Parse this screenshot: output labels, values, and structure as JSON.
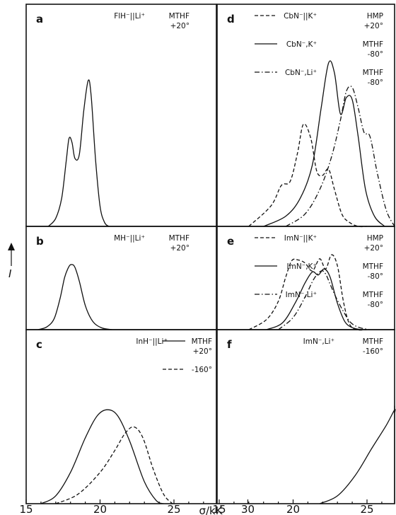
{
  "figure": {
    "y_axis_label": "I",
    "x_axis_label": "σ/kK",
    "x_tick_labels_left": [
      "15",
      "20",
      "25",
      "30"
    ],
    "x_tick_labels_right": [
      "15",
      "20",
      "25",
      "30"
    ]
  },
  "chart_data": [
    {
      "type": "line",
      "panel": "a",
      "x_range": [
        15,
        32
      ],
      "ylim": [
        0,
        1
      ],
      "legend": [
        {
          "label": "FlH⁻||Li⁺",
          "solvent": "MTHF",
          "temperature": "+20°"
        }
      ],
      "series": [
        {
          "style": "solid",
          "x": [
            16.5,
            17.0,
            17.4,
            17.7,
            17.9,
            18.1,
            18.3,
            18.6,
            18.9,
            19.2,
            19.4,
            19.7,
            20.0,
            20.3,
            20.6
          ],
          "y": [
            0.0,
            0.04,
            0.14,
            0.32,
            0.44,
            0.42,
            0.34,
            0.36,
            0.58,
            0.73,
            0.65,
            0.33,
            0.1,
            0.02,
            0.0
          ]
        }
      ]
    },
    {
      "type": "line",
      "panel": "b",
      "x_range": [
        15,
        32
      ],
      "ylim": [
        0,
        1
      ],
      "legend": [
        {
          "label": "MH⁻||Li⁺",
          "solvent": "MTHF",
          "temperature": "+20°"
        }
      ],
      "series": [
        {
          "style": "solid",
          "x": [
            15.8,
            16.4,
            16.9,
            17.3,
            17.6,
            17.9,
            18.1,
            18.3,
            18.6,
            19.0,
            19.5,
            20.1,
            20.8
          ],
          "y": [
            0.0,
            0.03,
            0.12,
            0.34,
            0.56,
            0.68,
            0.7,
            0.67,
            0.52,
            0.26,
            0.09,
            0.02,
            0.0
          ]
        }
      ]
    },
    {
      "type": "line",
      "panel": "c",
      "x_range": [
        15,
        32
      ],
      "ylim": [
        0,
        1
      ],
      "legend": [
        {
          "label": "InH⁻||Li⁺",
          "solvent": "MTHF",
          "temperature": "+20°",
          "style": "solid"
        },
        {
          "label": "",
          "solvent": "",
          "temperature": "-160°",
          "style": "dashed"
        }
      ],
      "series": [
        {
          "name": "+20°",
          "style": "solid",
          "x": [
            16.0,
            17.0,
            18.0,
            19.0,
            19.8,
            20.5,
            21.2,
            22.0,
            23.0,
            23.8,
            24.3
          ],
          "y": [
            0.0,
            0.05,
            0.2,
            0.42,
            0.56,
            0.6,
            0.56,
            0.4,
            0.14,
            0.02,
            0.0
          ]
        },
        {
          "name": "-160°",
          "style": "dashed",
          "x": [
            17.0,
            18.5,
            20.0,
            21.0,
            21.7,
            22.3,
            22.9,
            23.6,
            24.3,
            24.9
          ],
          "y": [
            0.0,
            0.06,
            0.2,
            0.34,
            0.45,
            0.49,
            0.42,
            0.22,
            0.06,
            0.0
          ]
        }
      ]
    },
    {
      "type": "line",
      "panel": "d",
      "x_range": [
        15,
        32
      ],
      "ylim": [
        0,
        1
      ],
      "legend": [
        {
          "label": "CbN⁻||K⁺",
          "solvent": "HMP",
          "temperature": "+20°",
          "style": "dashed"
        },
        {
          "label": "CbN⁻,K⁺",
          "solvent": "MTHF",
          "temperature": "-80°",
          "style": "solid"
        },
        {
          "label": "CbN⁻,Li⁺",
          "solvent": "MTHF",
          "temperature": "-80°",
          "style": "dash-dot"
        }
      ],
      "series": [
        {
          "name": "CbN⁻||K⁺",
          "style": "dashed",
          "x": [
            17.0,
            18.5,
            19.2,
            19.8,
            20.3,
            20.7,
            21.2,
            21.6,
            22.0,
            22.4,
            22.8,
            23.3,
            23.8,
            24.4,
            25.0
          ],
          "y": [
            0.0,
            0.1,
            0.2,
            0.22,
            0.36,
            0.5,
            0.43,
            0.27,
            0.25,
            0.28,
            0.18,
            0.06,
            0.02,
            0.0,
            0.0
          ]
        },
        {
          "name": "CbN⁻,K⁺",
          "style": "solid",
          "x": [
            18.0,
            19.5,
            20.5,
            21.3,
            21.9,
            22.4,
            22.8,
            23.2,
            23.6,
            24.0,
            24.4,
            24.9,
            25.5,
            26.2
          ],
          "y": [
            0.0,
            0.05,
            0.14,
            0.3,
            0.58,
            0.8,
            0.75,
            0.55,
            0.63,
            0.62,
            0.44,
            0.18,
            0.05,
            0.0
          ]
        },
        {
          "name": "CbN⁻,Li⁺",
          "style": "dash-dot",
          "x": [
            19.5,
            20.8,
            21.8,
            22.6,
            23.2,
            23.6,
            24.0,
            24.4,
            24.8,
            25.2,
            25.7,
            26.3,
            27.0
          ],
          "y": [
            0.0,
            0.06,
            0.18,
            0.34,
            0.52,
            0.66,
            0.68,
            0.58,
            0.46,
            0.44,
            0.26,
            0.08,
            0.0
          ]
        }
      ]
    },
    {
      "type": "line",
      "panel": "e",
      "x_range": [
        15,
        32
      ],
      "ylim": [
        0,
        1
      ],
      "legend": [
        {
          "label": "ImN⁻||K⁺",
          "solvent": "HMP",
          "temperature": "+20°",
          "style": "dashed"
        },
        {
          "label": "ImN⁻,K⁺",
          "solvent": "MTHF",
          "temperature": "-80°",
          "style": "solid"
        },
        {
          "label": "ImN⁻,Li⁺",
          "solvent": "MTHF",
          "temperature": "-80°",
          "style": "dash-dot"
        }
      ],
      "series": [
        {
          "name": "ImN⁻||K⁺",
          "style": "dashed",
          "x": [
            17.0,
            18.2,
            19.0,
            19.5,
            19.9,
            20.3,
            20.8,
            21.3,
            21.8,
            22.2,
            22.6,
            23.0,
            23.4,
            23.8,
            24.3,
            25.0
          ],
          "y": [
            0.0,
            0.1,
            0.28,
            0.52,
            0.68,
            0.69,
            0.66,
            0.58,
            0.7,
            0.6,
            0.74,
            0.63,
            0.28,
            0.06,
            0.0,
            0.0
          ]
        },
        {
          "name": "ImN⁻,K⁺",
          "style": "solid",
          "x": [
            18.2,
            19.3,
            20.2,
            20.8,
            21.3,
            21.7,
            22.1,
            22.5,
            23.0,
            23.5,
            24.0,
            24.6
          ],
          "y": [
            0.0,
            0.07,
            0.28,
            0.46,
            0.57,
            0.54,
            0.6,
            0.52,
            0.26,
            0.08,
            0.02,
            0.0
          ]
        },
        {
          "name": "ImN⁻,Li⁺",
          "style": "dash-dot",
          "x": [
            19.0,
            20.0,
            20.8,
            21.4,
            21.9,
            22.2,
            22.5,
            22.9,
            23.4,
            23.9,
            24.5,
            25.2
          ],
          "y": [
            0.0,
            0.12,
            0.32,
            0.5,
            0.58,
            0.55,
            0.45,
            0.32,
            0.18,
            0.07,
            0.02,
            0.0
          ]
        }
      ]
    },
    {
      "type": "line",
      "panel": "f",
      "x_range": [
        15,
        32
      ],
      "ylim": [
        0,
        1
      ],
      "legend": [
        {
          "label": "ImN⁻,Li⁺",
          "solvent": "MTHF",
          "temperature": "-160°"
        }
      ],
      "series": [
        {
          "style": "solid",
          "x": [
            21.8,
            23.0,
            24.2,
            25.3,
            26.3,
            27.2,
            27.8,
            28.3,
            28.8,
            29.3,
            30.0,
            30.7,
            31.5,
            32.0
          ],
          "y": [
            0.0,
            0.05,
            0.18,
            0.35,
            0.5,
            0.6,
            0.58,
            0.62,
            0.61,
            0.5,
            0.28,
            0.09,
            0.01,
            0.0
          ]
        }
      ]
    }
  ]
}
